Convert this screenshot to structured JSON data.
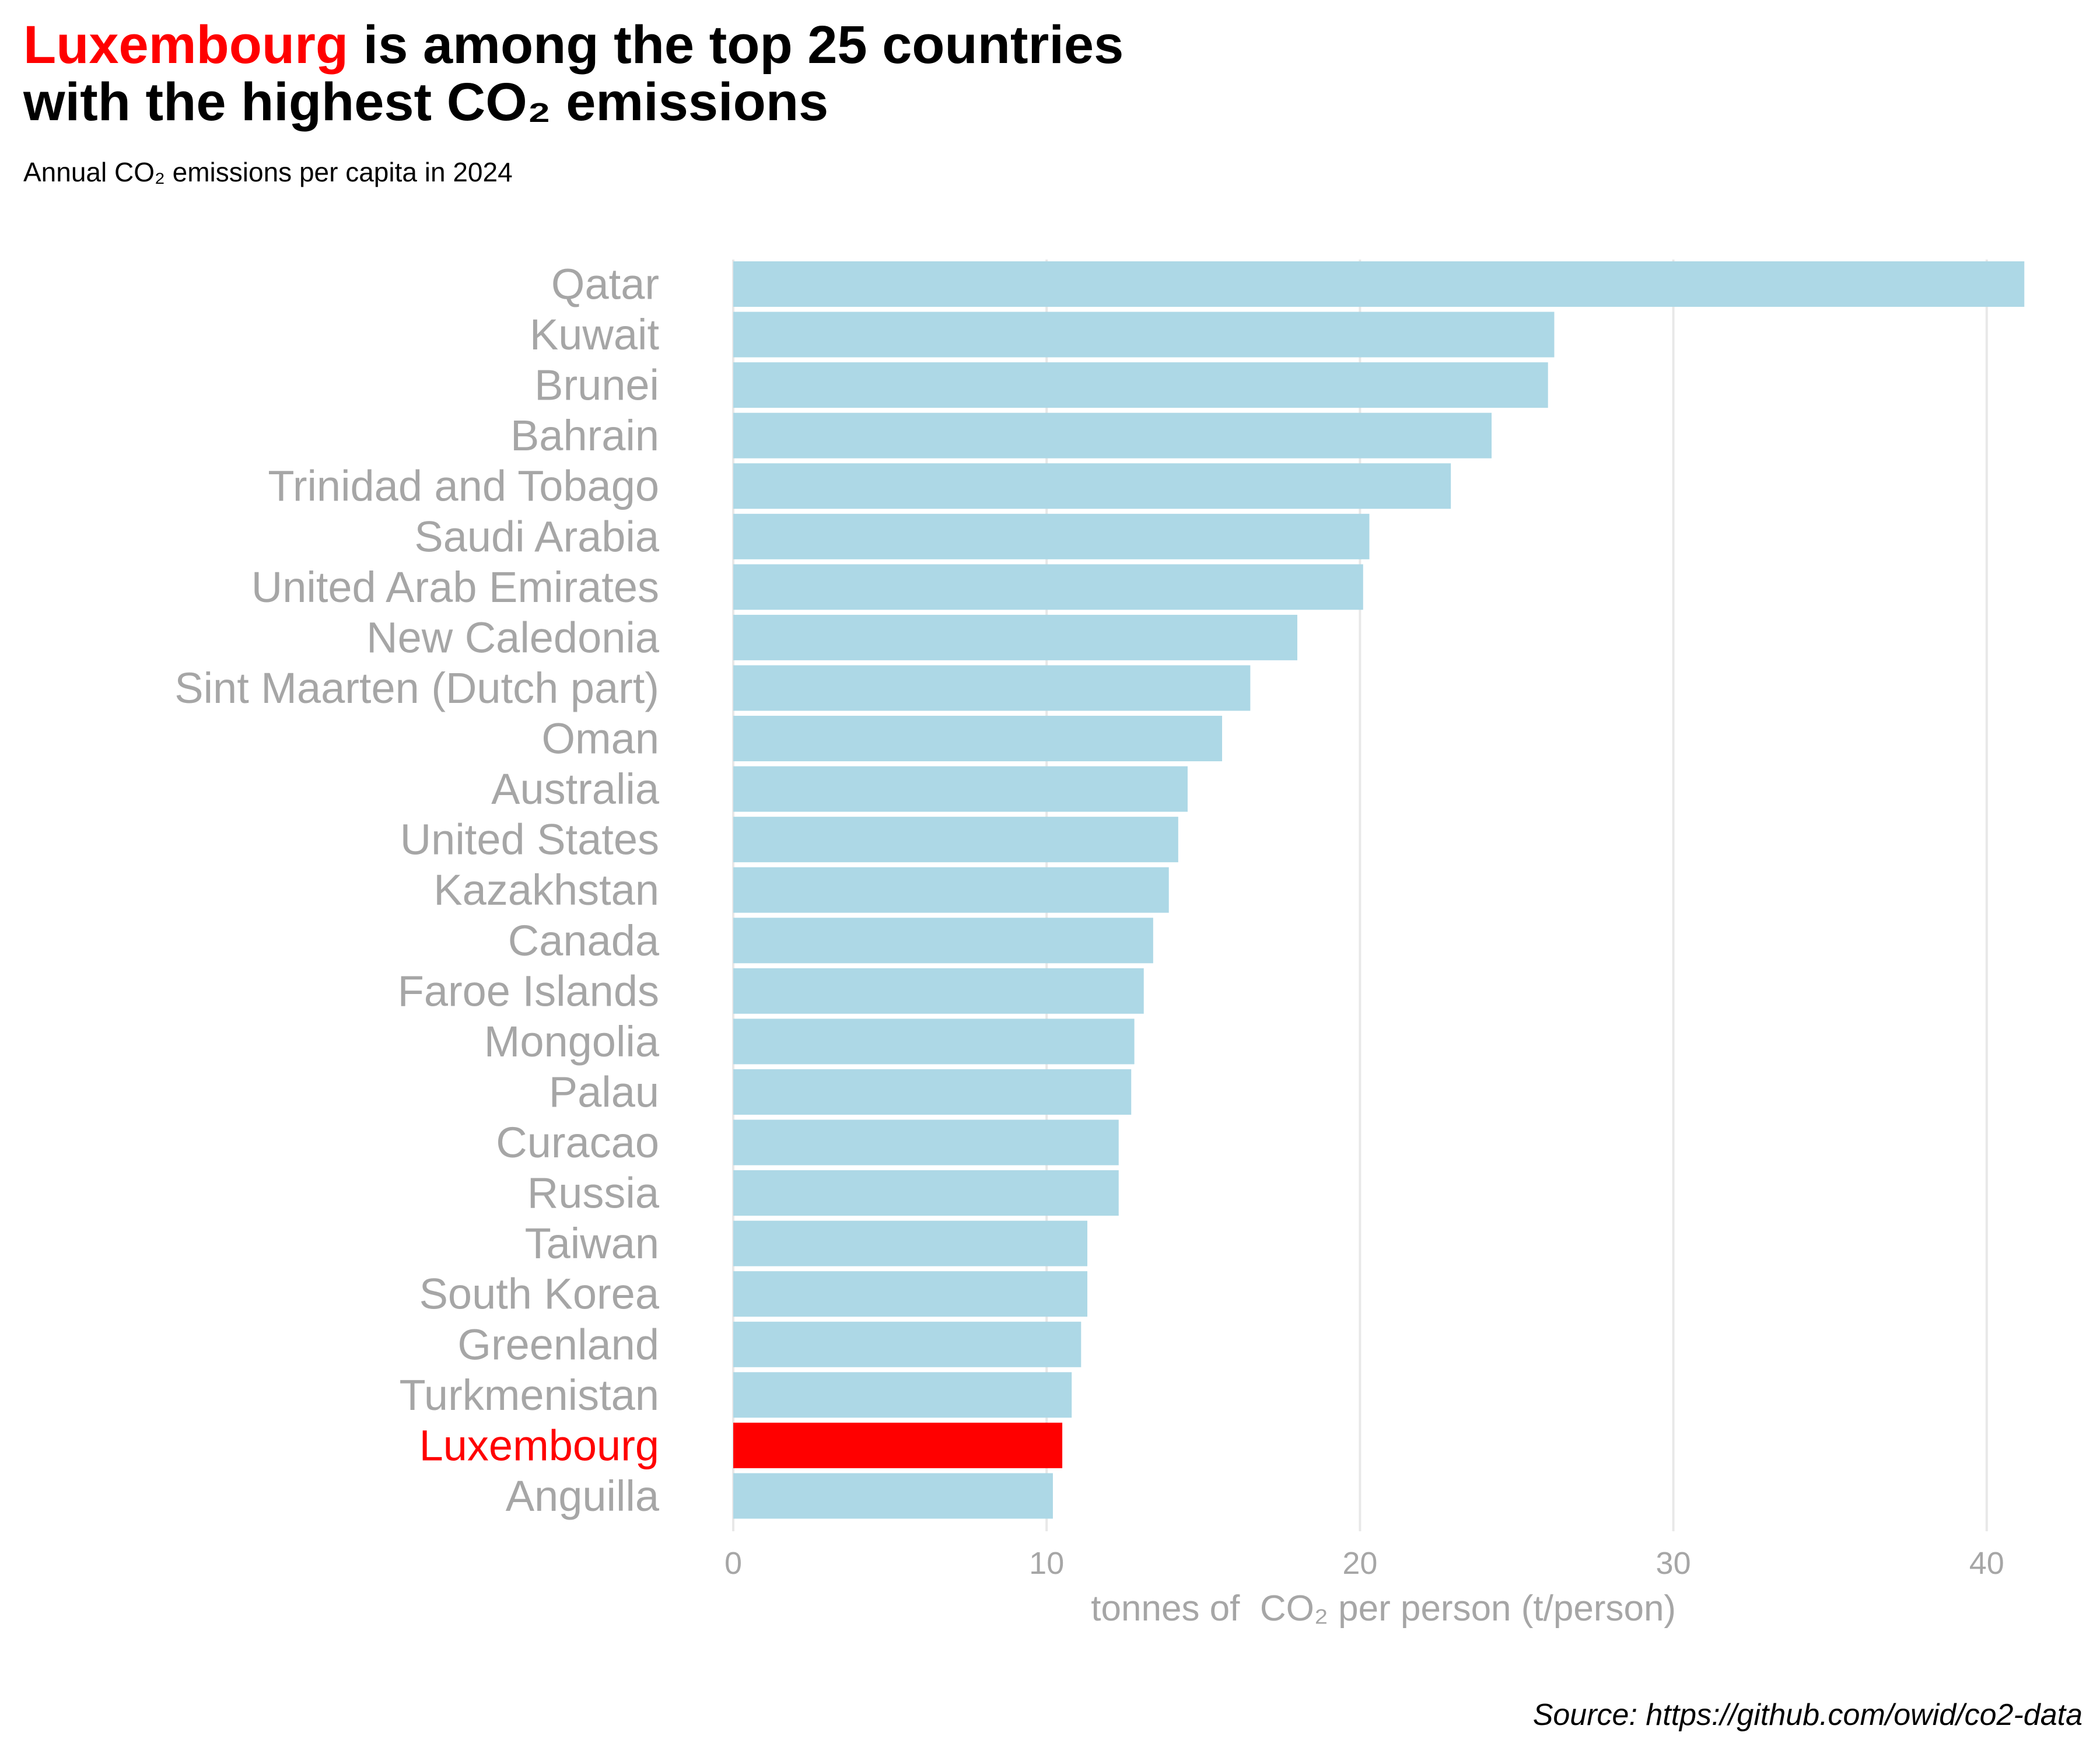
{
  "header": {
    "title_highlight": "Luxembourg",
    "title_rest_line1": " is among the top 25 countries",
    "title_line2": "with the highest CO₂ emissions",
    "subtitle": "Annual CO₂ emissions per capita in 2024"
  },
  "source": "Source: https://github.com/owid/co2-data",
  "colors": {
    "bar": "#add8e6",
    "highlight": "#ff0000",
    "label": "#a6a6a6",
    "grid": "#e8e8e8"
  },
  "chart_data": {
    "type": "bar",
    "orientation": "horizontal",
    "xlabel": "tonnes of  CO₂ per person (t/person)",
    "xlim": [
      0,
      41.5
    ],
    "xticks": [
      0,
      10,
      20,
      30,
      40
    ],
    "grid": true,
    "highlight": "Luxembourg",
    "categories": [
      "Qatar",
      "Kuwait",
      "Brunei",
      "Bahrain",
      "Trinidad and Tobago",
      "Saudi Arabia",
      "United Arab Emirates",
      "New Caledonia",
      "Sint Maarten (Dutch part)",
      "Oman",
      "Australia",
      "United States",
      "Kazakhstan",
      "Canada",
      "Faroe Islands",
      "Mongolia",
      "Palau",
      "Curacao",
      "Russia",
      "Taiwan",
      "South Korea",
      "Greenland",
      "Turkmenistan",
      "Luxembourg",
      "Anguilla"
    ],
    "values": [
      41.2,
      26.2,
      26.0,
      24.2,
      22.9,
      20.3,
      20.1,
      18.0,
      16.5,
      15.6,
      14.5,
      14.2,
      13.9,
      13.4,
      13.1,
      12.8,
      12.7,
      12.3,
      12.3,
      11.3,
      11.3,
      11.1,
      10.8,
      10.5,
      10.2
    ]
  }
}
